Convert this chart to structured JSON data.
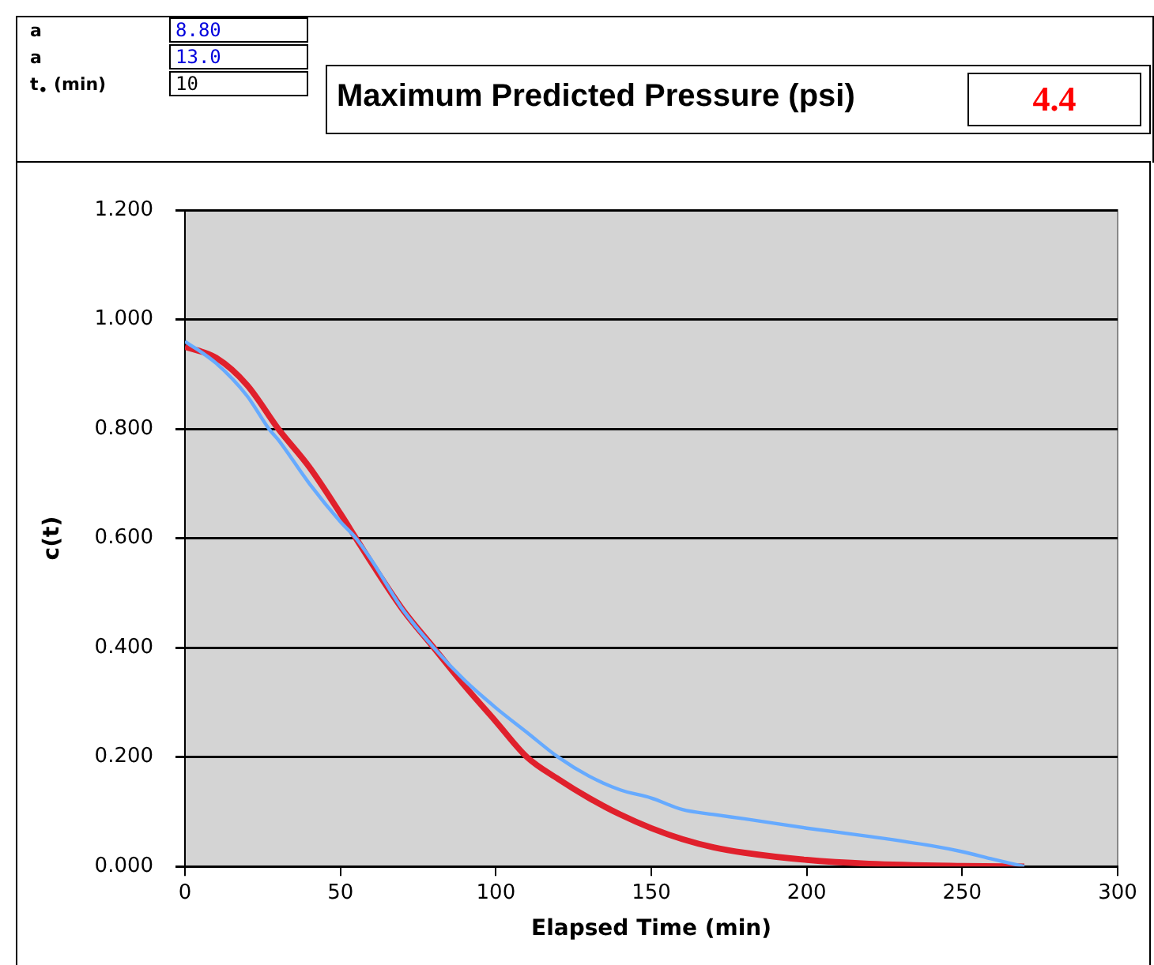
{
  "chart_data": {
    "type": "line",
    "xlabel": "Elapsed Time (min)",
    "ylabel": "c(t)",
    "annotations": [
      "a",
      "8.80",
      "a",
      "13.0",
      "t$_{•}$ (min)",
      "10",
      "Maximum Predicted Pressure (psi)",
      "4.4"
    ],
    "xlim": [
      0,
      300
    ],
    "xticks": [
      0,
      50,
      100,
      150,
      200,
      250,
      300
    ],
    "ylim": [
      0,
      1.2
    ],
    "yticks": [
      {
        "value": 0,
        "label": "0.000"
      },
      {
        "value": 0.2,
        "label": "0.200"
      },
      {
        "value": 0.4,
        "label": "0.400"
      },
      {
        "value": 0.6,
        "label": "0.600"
      },
      {
        "value": 0.8,
        "label": "0.800"
      },
      {
        "value": 1,
        "label": "1.000"
      },
      {
        "value": 1.2,
        "label": "1.200"
      }
    ],
    "grid": "y",
    "legend": false,
    "marker": "none",
    "line_style": "solid",
    "series": [
      {
        "color": "#66aaff",
        "x": [
          0,
          10,
          20,
          27,
          30,
          40,
          50,
          55,
          60,
          70,
          80,
          90,
          100,
          110,
          120,
          130,
          140,
          150,
          160,
          170,
          180,
          200,
          220,
          240,
          250,
          260,
          270
        ],
        "values": [
          0.96,
          0.92,
          0.86,
          0.8,
          0.78,
          0.7,
          0.63,
          0.6,
          0.56,
          0.47,
          0.4,
          0.34,
          0.29,
          0.245,
          0.2,
          0.165,
          0.14,
          0.125,
          0.104,
          0.095,
          0.087,
          0.07,
          0.055,
          0.038,
          0.027,
          0.013,
          0
        ]
      },
      {
        "color": "#e0202c",
        "x": [
          0,
          10,
          20,
          30,
          40,
          50,
          55,
          60,
          70,
          80,
          90,
          100,
          110,
          120,
          130,
          140,
          150,
          160,
          170,
          180,
          200,
          220,
          250,
          270
        ],
        "values": [
          0.95,
          0.93,
          0.88,
          0.8,
          0.73,
          0.645,
          0.6,
          0.555,
          0.47,
          0.4,
          0.33,
          0.265,
          0.2,
          0.16,
          0.125,
          0.095,
          0.07,
          0.05,
          0.035,
          0.025,
          0.012,
          0.005,
          0.001,
          0
        ]
      }
    ]
  }
}
